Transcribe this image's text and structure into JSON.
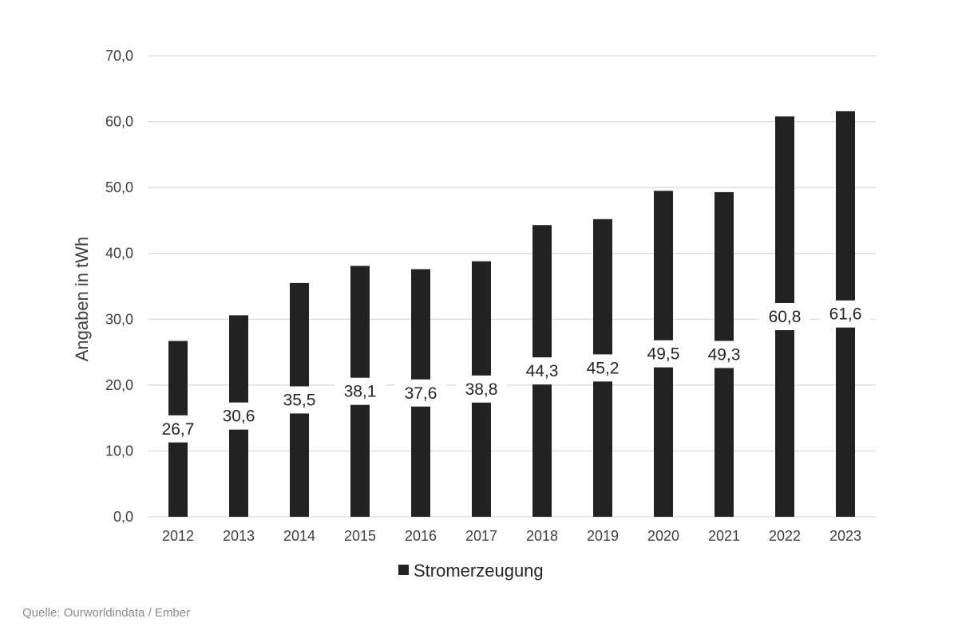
{
  "chart_data": {
    "type": "bar",
    "categories": [
      "2012",
      "2013",
      "2014",
      "2015",
      "2016",
      "2017",
      "2018",
      "2019",
      "2020",
      "2021",
      "2022",
      "2023"
    ],
    "series": [
      {
        "name": "Stromerzeugung",
        "values": [
          26.7,
          30.6,
          35.5,
          38.1,
          37.6,
          38.8,
          44.3,
          45.2,
          49.5,
          49.3,
          60.8,
          61.6
        ],
        "labels": [
          "26,7",
          "30,6",
          "35,5",
          "38,1",
          "37,6",
          "38,8",
          "44,3",
          "45,2",
          "49,5",
          "49,3",
          "60,8",
          "61,6"
        ]
      }
    ],
    "ylabel": "Angaben in tWh",
    "ylim": [
      0,
      70
    ],
    "yticks": [
      "0,0",
      "10,0",
      "20,0",
      "30,0",
      "40,0",
      "50,0",
      "60,0",
      "70,0"
    ],
    "grid": true,
    "legend": "bottom",
    "bar_color": "#222222",
    "grid_color": "#d9d9d9"
  },
  "source": "Quelle: Ourworldindata / Ember"
}
